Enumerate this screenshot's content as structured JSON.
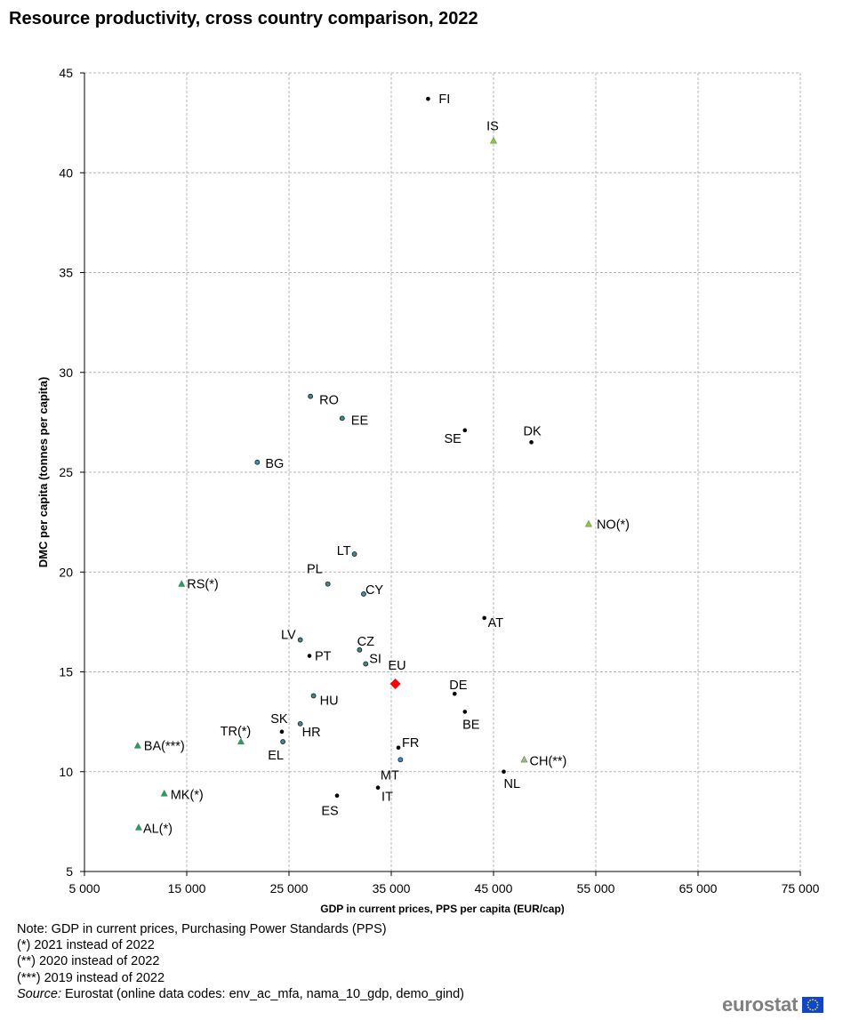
{
  "title": "Resource productivity, cross country comparison, 2022",
  "chart_data": {
    "type": "scatter",
    "title": "Resource productivity, cross country comparison, 2022",
    "xlabel": "GDP in current prices, PPS per capita (EUR/cap)",
    "ylabel": "DMC per capita (tonnes per capita)",
    "xlim": [
      5000,
      75000
    ],
    "ylim": [
      5,
      45
    ],
    "x_ticks": [
      "5 000",
      "15 000",
      "25 000",
      "35 000",
      "45 000",
      "55 000",
      "65 000",
      "75 000"
    ],
    "y_ticks": [
      "5",
      "10",
      "15",
      "20",
      "25",
      "30",
      "35",
      "40",
      "45"
    ],
    "grid": true,
    "points": [
      {
        "label": "FI",
        "x": 38600,
        "y": 43.7,
        "marker": "dot",
        "color": "#000000"
      },
      {
        "label": "IS",
        "x": 45000,
        "y": 41.6,
        "marker": "triangle",
        "color": "#8cc63f"
      },
      {
        "label": "RO",
        "x": 27100,
        "y": 28.8,
        "marker": "circle",
        "color": "#3f8a8c"
      },
      {
        "label": "EE",
        "x": 30200,
        "y": 27.7,
        "marker": "circle",
        "color": "#3f8a8c"
      },
      {
        "label": "SE",
        "x": 42200,
        "y": 27.1,
        "marker": "dot",
        "color": "#000000"
      },
      {
        "label": "DK",
        "x": 48700,
        "y": 26.5,
        "marker": "dot",
        "color": "#000000"
      },
      {
        "label": "BG",
        "x": 21900,
        "y": 25.5,
        "marker": "circle",
        "color": "#3b8fc4"
      },
      {
        "label": "NO(*)",
        "x": 54300,
        "y": 22.4,
        "marker": "triangle",
        "color": "#8cc63f"
      },
      {
        "label": "LT",
        "x": 31400,
        "y": 20.9,
        "marker": "circle",
        "color": "#3f8a8c"
      },
      {
        "label": "RS(*)",
        "x": 14500,
        "y": 19.4,
        "marker": "triangle",
        "color": "#1f9e73"
      },
      {
        "label": "PL",
        "x": 28800,
        "y": 19.4,
        "marker": "circle",
        "color": "#3f8a8c"
      },
      {
        "label": "CY",
        "x": 32300,
        "y": 18.9,
        "marker": "circle",
        "color": "#3b8fc4"
      },
      {
        "label": "AT",
        "x": 44100,
        "y": 17.7,
        "marker": "dot",
        "color": "#000000"
      },
      {
        "label": "LV",
        "x": 26100,
        "y": 16.6,
        "marker": "circle",
        "color": "#3f8a8c"
      },
      {
        "label": "CZ",
        "x": 31900,
        "y": 16.1,
        "marker": "circle",
        "color": "#3f8a8c"
      },
      {
        "label": "PT",
        "x": 27000,
        "y": 15.8,
        "marker": "dot",
        "color": "#000000"
      },
      {
        "label": "SI",
        "x": 32500,
        "y": 15.4,
        "marker": "circle",
        "color": "#3f8a8c"
      },
      {
        "label": "EU",
        "x": 35400,
        "y": 14.4,
        "marker": "diamond",
        "color": "#ff0000"
      },
      {
        "label": "DE",
        "x": 41200,
        "y": 13.9,
        "marker": "dot",
        "color": "#000000"
      },
      {
        "label": "HU",
        "x": 27400,
        "y": 13.8,
        "marker": "circle",
        "color": "#3f8a8c"
      },
      {
        "label": "BE",
        "x": 42200,
        "y": 13.0,
        "marker": "dot",
        "color": "#000000"
      },
      {
        "label": "SK",
        "x": 24300,
        "y": 12.0,
        "marker": "dot",
        "color": "#000000"
      },
      {
        "label": "HR",
        "x": 26100,
        "y": 12.4,
        "marker": "circle",
        "color": "#3f8a8c"
      },
      {
        "label": "TR(*)",
        "x": 20300,
        "y": 11.5,
        "marker": "triangle",
        "color": "#1f9e73"
      },
      {
        "label": "EL",
        "x": 24400,
        "y": 11.5,
        "marker": "circle",
        "color": "#3f8a8c"
      },
      {
        "label": "BA(***)",
        "x": 10200,
        "y": 11.3,
        "marker": "triangle",
        "color": "#1f9e73"
      },
      {
        "label": "FR",
        "x": 35700,
        "y": 11.2,
        "marker": "dot",
        "color": "#000000"
      },
      {
        "label": "MT",
        "x": 35900,
        "y": 10.6,
        "marker": "circle",
        "color": "#3b8fc4"
      },
      {
        "label": "CH(**)",
        "x": 48000,
        "y": 10.6,
        "marker": "triangle",
        "color": "#9ab97a"
      },
      {
        "label": "NL",
        "x": 46000,
        "y": 10.0,
        "marker": "dot",
        "color": "#000000"
      },
      {
        "label": "IT",
        "x": 33700,
        "y": 9.2,
        "marker": "dot",
        "color": "#000000"
      },
      {
        "label": "MK(*)",
        "x": 12800,
        "y": 8.9,
        "marker": "triangle",
        "color": "#1f9e73"
      },
      {
        "label": "ES",
        "x": 29700,
        "y": 8.8,
        "marker": "dot",
        "color": "#000000"
      },
      {
        "label": "AL(*)",
        "x": 10300,
        "y": 7.2,
        "marker": "triangle",
        "color": "#1f9e73"
      }
    ]
  },
  "notes": {
    "line1": "Note: GDP in current prices, Purchasing Power Standards (PPS)",
    "line2": "(*) 2021 instead of 2022",
    "line3": "(**) 2020 instead of 2022",
    "line4": "(***) 2019 instead of 2022",
    "source_label": "Source:",
    "source_text": " Eurostat (online data codes: env_ac_mfa, nama_10_gdp, demo_gind)"
  },
  "logo": {
    "text": "eurostat",
    "icon": "eu-flag-icon"
  }
}
